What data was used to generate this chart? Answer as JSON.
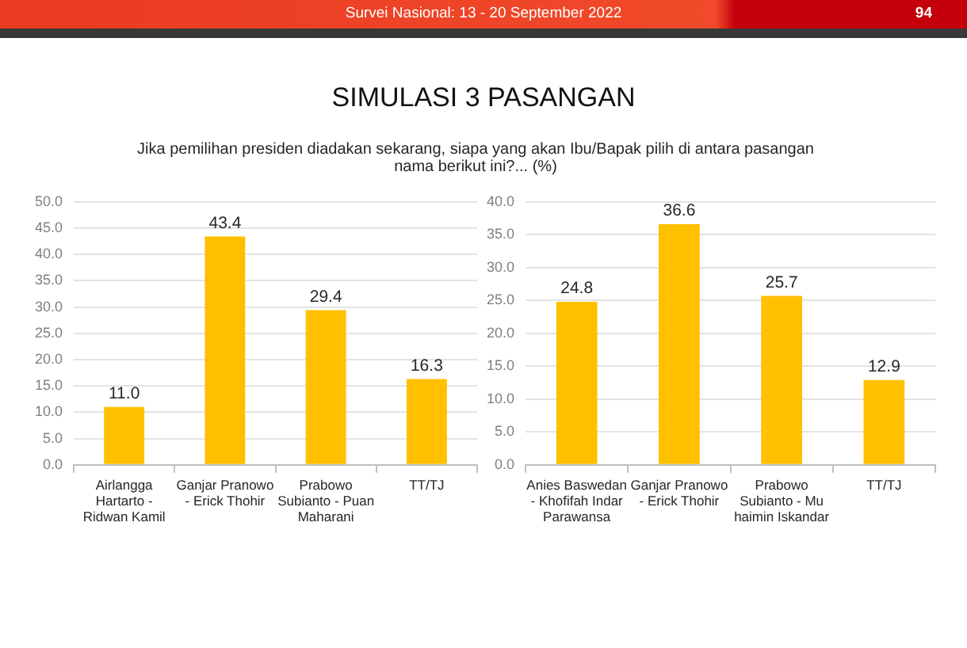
{
  "chart_data": [
    {
      "type": "bar",
      "title": "SIMULASI 3 PASANGAN",
      "subtitle": "Jika pemilihan presiden diadakan sekarang, siapa yang akan Ibu/Bapak pilih di antara pasangan nama berikut ini?... (%)",
      "annotations": [
        "Survei Nasional: 13 - 20 September 2022",
        "94"
      ],
      "categories": [
        "Airlangga Hartarto - Ridwan Kamil",
        "Ganjar Pranowo - Erick Thohir",
        "Prabowo Subianto - Puan Maharani",
        "TT/TJ"
      ],
      "values": [
        11.0,
        43.4,
        29.4,
        16.3
      ],
      "value_labels": [
        "11.0",
        "43.4",
        "29.4",
        "16.3"
      ],
      "color": "#ffc000",
      "ylim": [
        0,
        50
      ],
      "yticks": [
        {
          "value": 0,
          "label": "0.0"
        },
        {
          "value": 5,
          "label": "5.0"
        },
        {
          "value": 10,
          "label": "10.0"
        },
        {
          "value": 15,
          "label": "15.0"
        },
        {
          "value": 20,
          "label": "20.0"
        },
        {
          "value": 25,
          "label": "25.0"
        },
        {
          "value": 30,
          "label": "30.0"
        },
        {
          "value": 35,
          "label": "35.0"
        },
        {
          "value": 40,
          "label": "40.0"
        },
        {
          "value": 45,
          "label": "45.0"
        },
        {
          "value": 50,
          "label": "50.0"
        }
      ],
      "grid": "y"
    },
    {
      "type": "bar",
      "categories": [
        "Anies Baswedan - Khofifah Indar Parawansa",
        "Ganjar Pranowo - Erick Thohir",
        "Prabowo Subianto - Mu haimin Iskandar",
        "TT/TJ"
      ],
      "values": [
        24.8,
        36.6,
        25.7,
        12.9
      ],
      "value_labels": [
        "24.8",
        "36.6",
        "25.7",
        "12.9"
      ],
      "color": "#ffc000",
      "ylim": [
        0,
        40
      ],
      "yticks": [
        {
          "value": 0,
          "label": "0.0"
        },
        {
          "value": 5,
          "label": "5.0"
        },
        {
          "value": 10,
          "label": "10.0"
        },
        {
          "value": 15,
          "label": "15.0"
        },
        {
          "value": 20,
          "label": "20.0"
        },
        {
          "value": 25,
          "label": "25.0"
        },
        {
          "value": 30,
          "label": "30.0"
        },
        {
          "value": 35,
          "label": "35.0"
        },
        {
          "value": 40,
          "label": "40.0"
        }
      ],
      "grid": "y"
    }
  ]
}
